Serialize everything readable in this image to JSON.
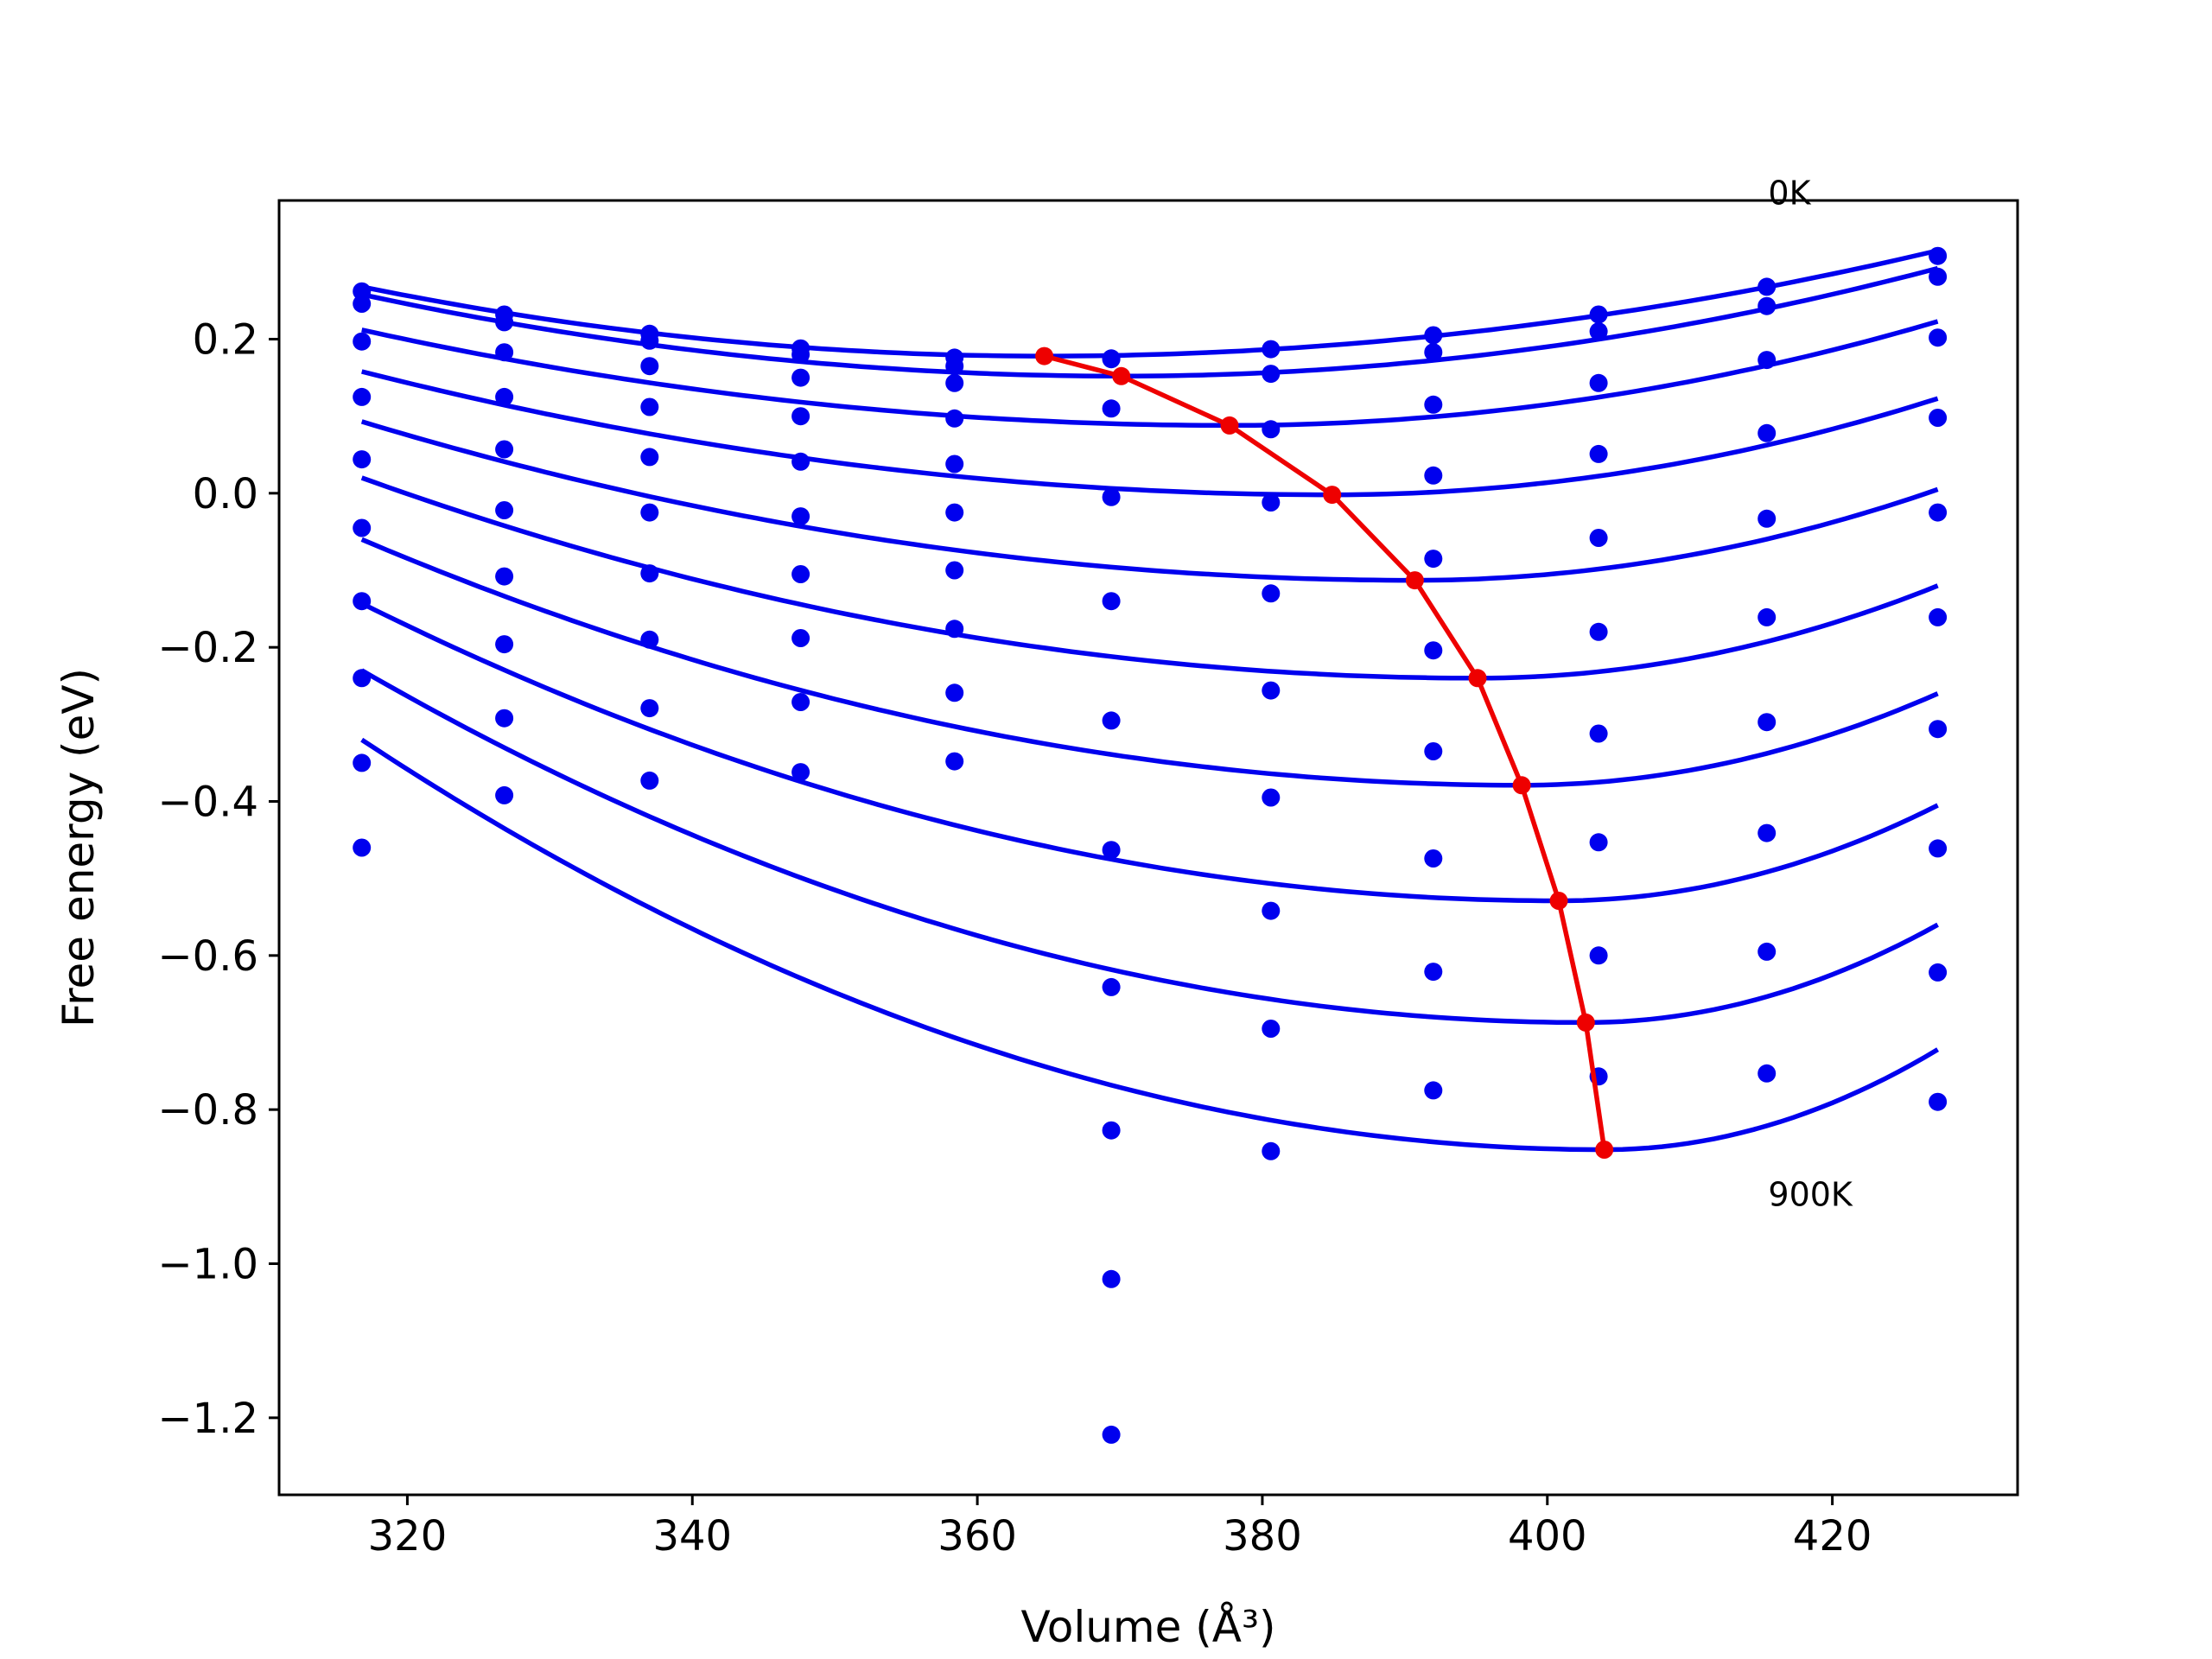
{
  "chart_data": {
    "type": "scatter",
    "xlabel": "Volume (Å³)",
    "ylabel": "Free energy (eV)",
    "xlim": [
      311,
      433
    ],
    "ylim": [
      -1.3,
      0.38
    ],
    "xticks": [
      320,
      340,
      360,
      380,
      400,
      420
    ],
    "yticks": [
      0.2,
      0.0,
      -0.2,
      -0.4,
      -0.6,
      -0.8,
      -1.0,
      -1.2
    ],
    "xtick_labels": [
      "320",
      "340",
      "360",
      "380",
      "400",
      "420"
    ],
    "ytick_labels": [
      "0.2",
      "0.0",
      "−0.2",
      "−0.4",
      "−0.6",
      "−0.8",
      "−1.0",
      "−1.2"
    ],
    "grid": false,
    "legend": "none",
    "annotations": [
      {
        "text": "0K",
        "x": 415.5,
        "y": 0.375
      },
      {
        "text": "900K",
        "x": 415.5,
        "y": -0.925
      }
    ],
    "colors": {
      "points": "#0000ee",
      "fits": "#0000ee",
      "equilibrium": "#ee0000"
    },
    "x": [
      316.8,
      326.8,
      337.0,
      347.6,
      358.4,
      369.4,
      380.6,
      392.0,
      403.6,
      415.4,
      427.4
    ],
    "point_series": [
      {
        "values": [
          0.262,
          0.232,
          0.207,
          0.188,
          0.176,
          0.174,
          0.187,
          0.205,
          0.232,
          0.268,
          0.308
        ]
      },
      {
        "values": [
          0.246,
          0.222,
          0.198,
          0.18,
          0.165,
          0.175,
          0.155,
          0.183,
          0.21,
          0.243,
          0.281
        ]
      },
      {
        "values": [
          0.197,
          0.183,
          0.165,
          0.15,
          0.143,
          0.11,
          0.083,
          0.115,
          0.143,
          0.173,
          0.202
        ]
      },
      {
        "values": [
          0.125,
          0.125,
          0.112,
          0.1,
          0.097,
          -0.005,
          -0.012,
          0.023,
          0.051,
          0.078,
          0.098
        ]
      },
      {
        "values": [
          0.044,
          0.057,
          0.047,
          0.041,
          0.038,
          -0.14,
          -0.13,
          -0.085,
          -0.058,
          -0.033,
          -0.025
        ]
      },
      {
        "values": [
          -0.045,
          -0.022,
          -0.025,
          -0.03,
          -0.025,
          -0.295,
          -0.256,
          -0.204,
          -0.18,
          -0.161,
          -0.161
        ]
      },
      {
        "values": [
          -0.14,
          -0.108,
          -0.104,
          -0.105,
          -0.1,
          -0.463,
          -0.395,
          -0.335,
          -0.312,
          -0.297,
          -0.306
        ]
      },
      {
        "values": [
          -0.24,
          -0.196,
          -0.19,
          -0.188,
          -0.176,
          -0.641,
          -0.542,
          -0.474,
          -0.453,
          -0.441,
          -0.461
        ]
      },
      {
        "values": [
          -0.35,
          -0.292,
          -0.279,
          -0.271,
          -0.259,
          -0.827,
          -0.695,
          -0.621,
          -0.6,
          -0.595,
          -0.622
        ]
      },
      {
        "values": [
          -0.46,
          -0.392,
          -0.373,
          -0.362,
          -0.348,
          -1.02,
          -0.854,
          -0.775,
          -0.757,
          -0.753,
          -0.79
        ]
      },
      {
        "x": [
          369.4
        ],
        "values": [
          -1.222
        ]
      }
    ],
    "fit_series": [
      {
        "min_x": 364.7,
        "min_y": 0.178,
        "y_left": 0.268,
        "y_right": 0.315
      },
      {
        "min_x": 370.1,
        "min_y": 0.152,
        "y_left": 0.258,
        "y_right": 0.292
      },
      {
        "min_x": 377.7,
        "min_y": 0.088,
        "y_left": 0.212,
        "y_right": 0.223
      },
      {
        "min_x": 384.9,
        "min_y": -0.002,
        "y_left": 0.158,
        "y_right": 0.123
      },
      {
        "min_x": 390.7,
        "min_y": -0.113,
        "y_left": 0.093,
        "y_right": 0.005
      },
      {
        "min_x": 395.1,
        "min_y": -0.24,
        "y_left": 0.02,
        "y_right": -0.12
      },
      {
        "min_x": 398.2,
        "min_y": -0.379,
        "y_left": -0.06,
        "y_right": -0.26
      },
      {
        "min_x": 400.8,
        "min_y": -0.529,
        "y_left": -0.143,
        "y_right": -0.405
      },
      {
        "min_x": 402.7,
        "min_y": -0.687,
        "y_left": -0.23,
        "y_right": -0.56
      },
      {
        "min_x": 404.0,
        "min_y": -0.852,
        "y_left": -0.32,
        "y_right": -0.722
      }
    ],
    "fit_x_range": [
      316.8,
      427.4
    ],
    "equilibrium_series": {
      "x": [
        364.7,
        370.1,
        377.7,
        384.9,
        390.7,
        395.1,
        398.2,
        400.8,
        402.7,
        404.0
      ],
      "values": [
        0.178,
        0.152,
        0.088,
        -0.002,
        -0.113,
        -0.24,
        -0.379,
        -0.529,
        -0.687,
        -0.852
      ]
    }
  }
}
